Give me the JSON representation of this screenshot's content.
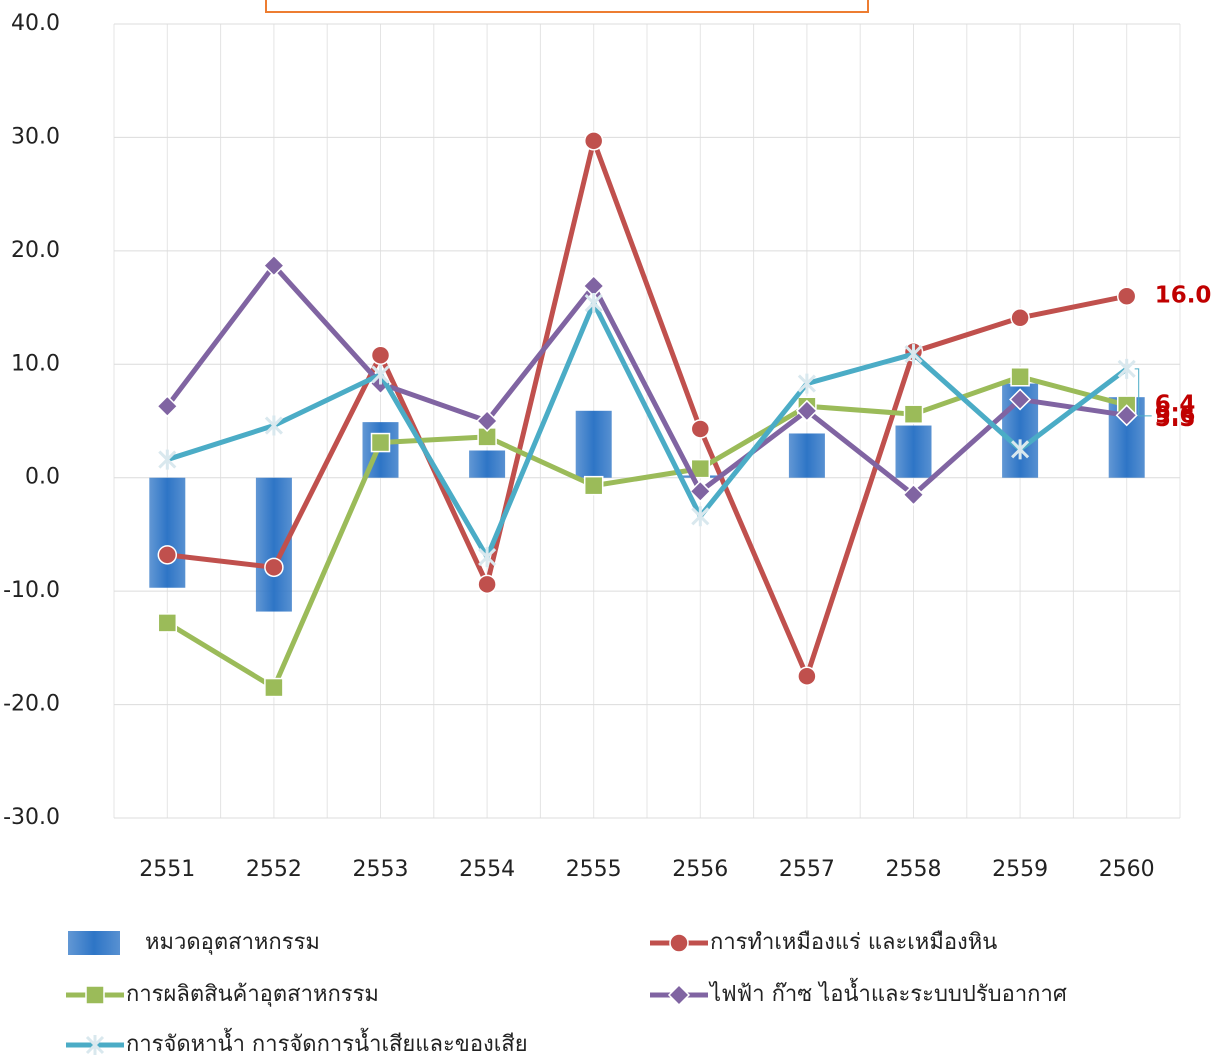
{
  "chart_data": {
    "type": "combo",
    "categories": [
      "2551",
      "2552",
      "2553",
      "2554",
      "2555",
      "2556",
      "2557",
      "2558",
      "2559",
      "2560"
    ],
    "series": [
      {
        "name": "หมวดอุตสาหกรรม",
        "type": "bar",
        "color": "#2e75c6",
        "values": [
          -9.7,
          -11.8,
          4.9,
          2.4,
          5.9,
          0.2,
          3.9,
          4.6,
          8.3,
          7.1
        ]
      },
      {
        "name": "การทำเหมืองแร่ และเหมืองหิน",
        "type": "line",
        "marker": "circle",
        "color": "#c0504d",
        "values": [
          -6.8,
          -7.9,
          10.8,
          -9.4,
          29.7,
          4.3,
          -17.5,
          11.1,
          14.1,
          16.0
        ],
        "value_labels": [
          null,
          null,
          null,
          null,
          null,
          null,
          null,
          null,
          null,
          "16.0"
        ]
      },
      {
        "name": "การผลิตสินค้าอุตสาหกรรม",
        "type": "line",
        "marker": "square",
        "color": "#9bbb59",
        "values": [
          -12.8,
          -18.5,
          3.1,
          3.6,
          -0.7,
          0.8,
          6.3,
          5.6,
          8.9,
          6.4
        ],
        "value_labels": [
          null,
          null,
          null,
          null,
          null,
          null,
          null,
          null,
          null,
          "6.4"
        ]
      },
      {
        "name": "ไฟฟ้า ก๊าซ ไอน้ำและระบบปรับอากาศ",
        "type": "line",
        "marker": "diamond",
        "color": "#8064a2",
        "values": [
          6.3,
          18.7,
          8.3,
          5.0,
          16.9,
          -1.2,
          5.9,
          -1.5,
          6.9,
          5.5
        ],
        "value_labels": [
          null,
          null,
          null,
          null,
          null,
          null,
          null,
          null,
          null,
          "5.5"
        ]
      },
      {
        "name": "การจัดหาน้ำ การจัดการน้ำเสียและของเสีย",
        "type": "line",
        "marker": "star",
        "color": "#4bacc6",
        "values": [
          1.6,
          4.6,
          9.1,
          -7.0,
          15.4,
          -3.4,
          8.3,
          10.9,
          2.5,
          9.6
        ],
        "value_labels": [
          null,
          null,
          null,
          null,
          null,
          null,
          null,
          null,
          null,
          "9.6"
        ]
      }
    ],
    "ylim": [
      -30,
      40
    ],
    "yticks": [
      {
        "value": -30,
        "label": "-30.0"
      },
      {
        "value": -20,
        "label": "-20.0"
      },
      {
        "value": -10,
        "label": "-10.0"
      },
      {
        "value": 0,
        "label": "0.0"
      },
      {
        "value": 10,
        "label": "10.0"
      },
      {
        "value": 20,
        "label": "20.0"
      },
      {
        "value": 30,
        "label": "30.0"
      },
      {
        "value": 40,
        "label": "40.0"
      }
    ],
    "grid": true
  }
}
